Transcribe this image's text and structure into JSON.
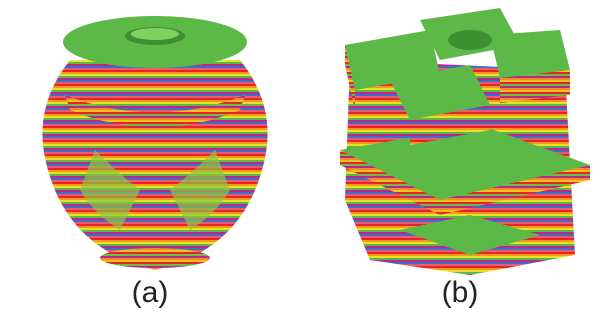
{
  "panels": [
    {
      "label": "(a)"
    },
    {
      "label": "(b)"
    }
  ]
}
